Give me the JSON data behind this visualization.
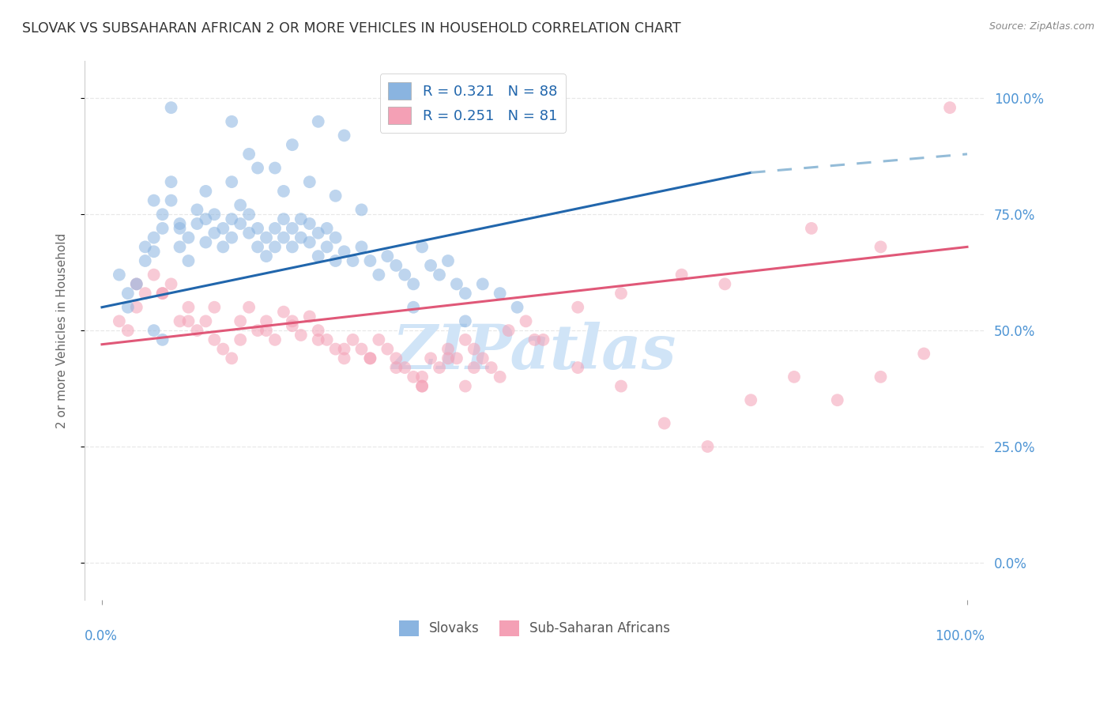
{
  "title": "SLOVAK VS SUBSAHARAN AFRICAN 2 OR MORE VEHICLES IN HOUSEHOLD CORRELATION CHART",
  "source": "Source: ZipAtlas.com",
  "ylabel": "2 or more Vehicles in Household",
  "ytick_values": [
    0,
    25,
    50,
    75,
    100
  ],
  "xlim": [
    -2,
    102
  ],
  "ylim": [
    -8,
    108
  ],
  "legend_label1": "Slovaks",
  "legend_label2": "Sub-Saharan Africans",
  "blue_color": "#8ab4e0",
  "pink_color": "#f4a0b5",
  "blue_line_color": "#2166ac",
  "pink_line_color": "#e05878",
  "dashed_line_color": "#94bcd8",
  "title_color": "#333333",
  "source_color": "#888888",
  "axis_label_color": "#4d94d4",
  "watermark_color": "#d0e4f7",
  "background_color": "#ffffff",
  "grid_color": "#e8e8e8",
  "blue_line_x0": 0,
  "blue_line_y0": 55,
  "blue_line_x1": 75,
  "blue_line_y1": 84,
  "blue_dash_x0": 75,
  "blue_dash_y0": 84,
  "blue_dash_x1": 100,
  "blue_dash_y1": 88,
  "pink_line_x0": 0,
  "pink_line_y0": 47,
  "pink_line_x1": 100,
  "pink_line_y1": 68,
  "blue_points_x": [
    2,
    3,
    4,
    5,
    5,
    6,
    6,
    7,
    7,
    8,
    8,
    9,
    9,
    10,
    10,
    11,
    11,
    12,
    12,
    13,
    13,
    14,
    14,
    15,
    15,
    16,
    16,
    17,
    17,
    18,
    18,
    19,
    19,
    20,
    20,
    21,
    21,
    22,
    22,
    23,
    23,
    24,
    24,
    25,
    25,
    26,
    26,
    27,
    27,
    28,
    29,
    30,
    31,
    32,
    33,
    34,
    35,
    36,
    37,
    38,
    39,
    40,
    41,
    42,
    44,
    46,
    48,
    3,
    6,
    9,
    12,
    15,
    18,
    21,
    24,
    27,
    30,
    25,
    28,
    15,
    20,
    22,
    17,
    8,
    36,
    42,
    6,
    7
  ],
  "blue_points_y": [
    62,
    58,
    60,
    65,
    68,
    70,
    67,
    72,
    75,
    78,
    82,
    68,
    72,
    65,
    70,
    73,
    76,
    69,
    74,
    71,
    75,
    68,
    72,
    70,
    74,
    73,
    77,
    75,
    71,
    68,
    72,
    66,
    70,
    68,
    72,
    70,
    74,
    72,
    68,
    70,
    74,
    69,
    73,
    71,
    66,
    68,
    72,
    65,
    70,
    67,
    65,
    68,
    65,
    62,
    66,
    64,
    62,
    60,
    68,
    64,
    62,
    65,
    60,
    58,
    60,
    58,
    55,
    55,
    78,
    73,
    80,
    82,
    85,
    80,
    82,
    79,
    76,
    95,
    92,
    95,
    85,
    90,
    88,
    98,
    55,
    52,
    50,
    48
  ],
  "pink_points_x": [
    2,
    3,
    4,
    5,
    6,
    7,
    8,
    9,
    10,
    11,
    12,
    13,
    14,
    15,
    16,
    17,
    18,
    19,
    20,
    21,
    22,
    23,
    24,
    25,
    26,
    27,
    28,
    29,
    30,
    31,
    32,
    33,
    34,
    35,
    36,
    37,
    38,
    39,
    40,
    41,
    42,
    43,
    44,
    45,
    47,
    49,
    51,
    55,
    60,
    67,
    72,
    82,
    90,
    98,
    4,
    7,
    10,
    13,
    16,
    19,
    22,
    25,
    28,
    31,
    34,
    37,
    40,
    43,
    46,
    50,
    55,
    60,
    65,
    70,
    75,
    80,
    85,
    90,
    95,
    42,
    37
  ],
  "pink_points_y": [
    52,
    50,
    55,
    58,
    62,
    58,
    60,
    52,
    55,
    50,
    52,
    48,
    46,
    44,
    52,
    55,
    50,
    52,
    48,
    54,
    51,
    49,
    53,
    50,
    48,
    46,
    44,
    48,
    46,
    44,
    48,
    46,
    44,
    42,
    40,
    38,
    44,
    42,
    46,
    44,
    48,
    46,
    44,
    42,
    50,
    52,
    48,
    55,
    58,
    62,
    60,
    72,
    68,
    98,
    60,
    58,
    52,
    55,
    48,
    50,
    52,
    48,
    46,
    44,
    42,
    40,
    44,
    42,
    40,
    48,
    42,
    38,
    30,
    25,
    35,
    40,
    35,
    40,
    45,
    38,
    38
  ],
  "watermark_text": "ZIPatlas",
  "point_size": 130,
  "point_alpha": 0.55
}
